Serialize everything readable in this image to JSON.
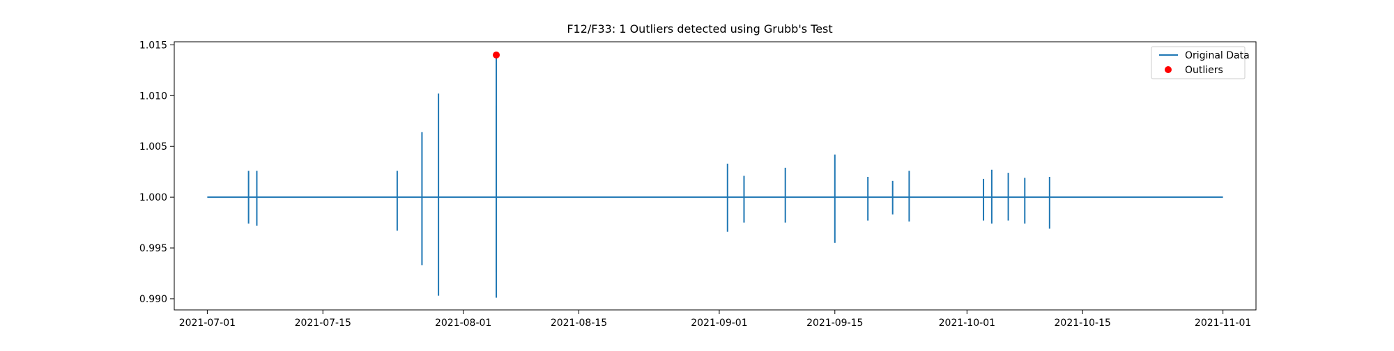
{
  "chart_data": {
    "type": "line",
    "title": "F12/F33: 1 Outliers detected using Grubb's Test",
    "xlabel": "",
    "ylabel": "",
    "x_axis": {
      "kind": "date",
      "range": [
        "2021-06-27",
        "2021-11-05"
      ],
      "tick_labels": [
        "2021-07-01",
        "2021-07-15",
        "2021-08-01",
        "2021-08-15",
        "2021-09-01",
        "2021-09-15",
        "2021-10-01",
        "2021-10-15",
        "2021-11-01"
      ]
    },
    "y_axis": {
      "range": [
        0.9889,
        1.0153
      ],
      "ticks": [
        0.99,
        0.995,
        1.0,
        1.005,
        1.01,
        1.015
      ],
      "tick_labels": [
        "0.990",
        "0.995",
        "1.000",
        "1.005",
        "1.010",
        "1.015"
      ]
    },
    "grid": false,
    "legend": {
      "placement": "top-right",
      "entries": [
        "Original Data",
        "Outliers"
      ]
    },
    "series": [
      {
        "name": "Original Data",
        "color": "#1f77b4",
        "baseline_value": 1.0,
        "x_start": "2021-07-01",
        "x_end": "2021-11-01",
        "spikes": [
          {
            "x": "2021-07-06",
            "high": 1.0026,
            "low": 0.9974
          },
          {
            "x": "2021-07-07",
            "high": 1.0026,
            "low": 0.9972
          },
          {
            "x": "2021-07-24",
            "high": 1.0026,
            "low": 0.9967
          },
          {
            "x": "2021-07-27",
            "high": 1.0064,
            "low": 0.9933
          },
          {
            "x": "2021-07-29",
            "high": 1.0102,
            "low": 0.9903
          },
          {
            "x": "2021-08-05",
            "high": 1.014,
            "low": 0.9901
          },
          {
            "x": "2021-08-05",
            "high": 1.009,
            "low": 0.9926
          },
          {
            "x": "2021-09-02",
            "high": 1.0033,
            "low": 0.9966
          },
          {
            "x": "2021-09-04",
            "high": 1.0021,
            "low": 0.9975
          },
          {
            "x": "2021-09-09",
            "high": 1.0029,
            "low": 0.9975
          },
          {
            "x": "2021-09-15",
            "high": 1.0042,
            "low": 0.9955
          },
          {
            "x": "2021-09-19",
            "high": 1.002,
            "low": 0.9977
          },
          {
            "x": "2021-09-22",
            "high": 1.0016,
            "low": 0.9983
          },
          {
            "x": "2021-09-24",
            "high": 1.0026,
            "low": 0.9976
          },
          {
            "x": "2021-10-03",
            "high": 1.0018,
            "low": 0.9977
          },
          {
            "x": "2021-10-04",
            "high": 1.0027,
            "low": 0.9974
          },
          {
            "x": "2021-10-06",
            "high": 1.0024,
            "low": 0.9977
          },
          {
            "x": "2021-10-08",
            "high": 1.0019,
            "low": 0.9974
          },
          {
            "x": "2021-10-11",
            "high": 1.002,
            "low": 0.9969
          }
        ]
      },
      {
        "name": "Outliers",
        "color": "#ff0000",
        "points": [
          {
            "x": "2021-08-05",
            "y": 1.014
          }
        ]
      }
    ]
  }
}
